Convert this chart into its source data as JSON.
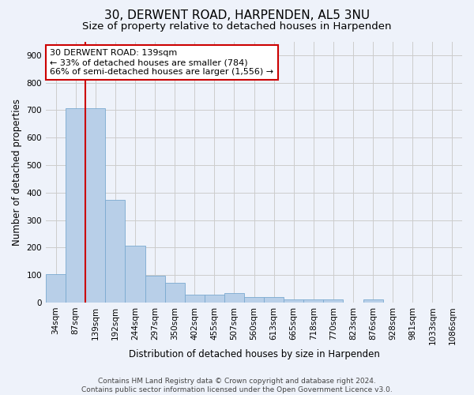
{
  "title": "30, DERWENT ROAD, HARPENDEN, AL5 3NU",
  "subtitle": "Size of property relative to detached houses in Harpenden",
  "xlabel": "Distribution of detached houses by size in Harpenden",
  "ylabel": "Number of detached properties",
  "categories": [
    "34sqm",
    "87sqm",
    "139sqm",
    "192sqm",
    "244sqm",
    "297sqm",
    "350sqm",
    "402sqm",
    "455sqm",
    "507sqm",
    "560sqm",
    "613sqm",
    "665sqm",
    "718sqm",
    "770sqm",
    "823sqm",
    "876sqm",
    "928sqm",
    "981sqm",
    "1033sqm",
    "1086sqm"
  ],
  "values": [
    102,
    707,
    707,
    375,
    207,
    97,
    72,
    30,
    30,
    35,
    20,
    20,
    10,
    10,
    10,
    0,
    10,
    0,
    0,
    0,
    0
  ],
  "bar_color": "#b8cfe8",
  "bar_edge_color": "#7aaad0",
  "vline_color": "#cc0000",
  "annotation_text": "30 DERWENT ROAD: 139sqm\n← 33% of detached houses are smaller (784)\n66% of semi-detached houses are larger (1,556) →",
  "annotation_box_facecolor": "#ffffff",
  "annotation_box_edgecolor": "#cc0000",
  "ylim": [
    0,
    950
  ],
  "yticks": [
    0,
    100,
    200,
    300,
    400,
    500,
    600,
    700,
    800,
    900
  ],
  "footer_text": "Contains HM Land Registry data © Crown copyright and database right 2024.\nContains public sector information licensed under the Open Government Licence v3.0.",
  "background_color": "#eef2fa",
  "plot_background_color": "#eef2fa",
  "grid_color": "#cccccc",
  "title_fontsize": 11,
  "subtitle_fontsize": 9.5,
  "axis_label_fontsize": 8.5,
  "tick_fontsize": 7.5,
  "annotation_fontsize": 8,
  "footer_fontsize": 6.5
}
